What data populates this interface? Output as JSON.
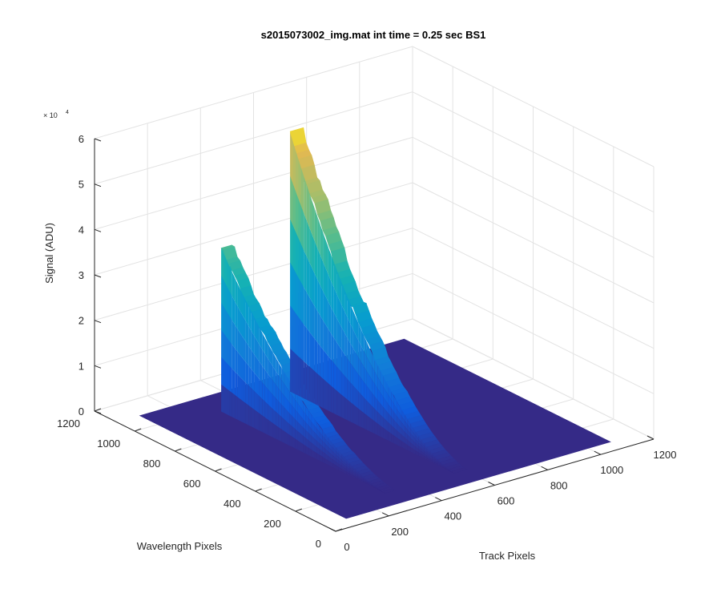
{
  "chart_data": {
    "type": "surface",
    "title": "s2015073002_img.mat int time = 0.25 sec   BS1",
    "xlabel": "Track Pixels",
    "ylabel": "Wavelength Pixels",
    "zlabel": "Signal (ADU)",
    "z_exponent_base": "× 10",
    "z_exponent_power": "4",
    "xlim": [
      0,
      1200
    ],
    "ylim": [
      0,
      1200
    ],
    "zlim": [
      0,
      60000
    ],
    "xticks": [
      "0",
      "200",
      "400",
      "600",
      "800",
      "1000",
      "1200"
    ],
    "yticks": [
      "0",
      "200",
      "400",
      "600",
      "800",
      "1000",
      "1200"
    ],
    "zticks": [
      "0",
      "1",
      "2",
      "3",
      "4",
      "5",
      "6"
    ],
    "grid": true,
    "colormap": "parula",
    "series": [
      {
        "track_start": 300,
        "track_end": 340,
        "peak_wavelength": 965,
        "wavelength_end": 150,
        "peak_signal": 36000
      },
      {
        "track_start": 560,
        "track_end": 610,
        "peak_wavelength": 965,
        "wavelength_end": 150,
        "peak_signal": 57000
      }
    ]
  }
}
